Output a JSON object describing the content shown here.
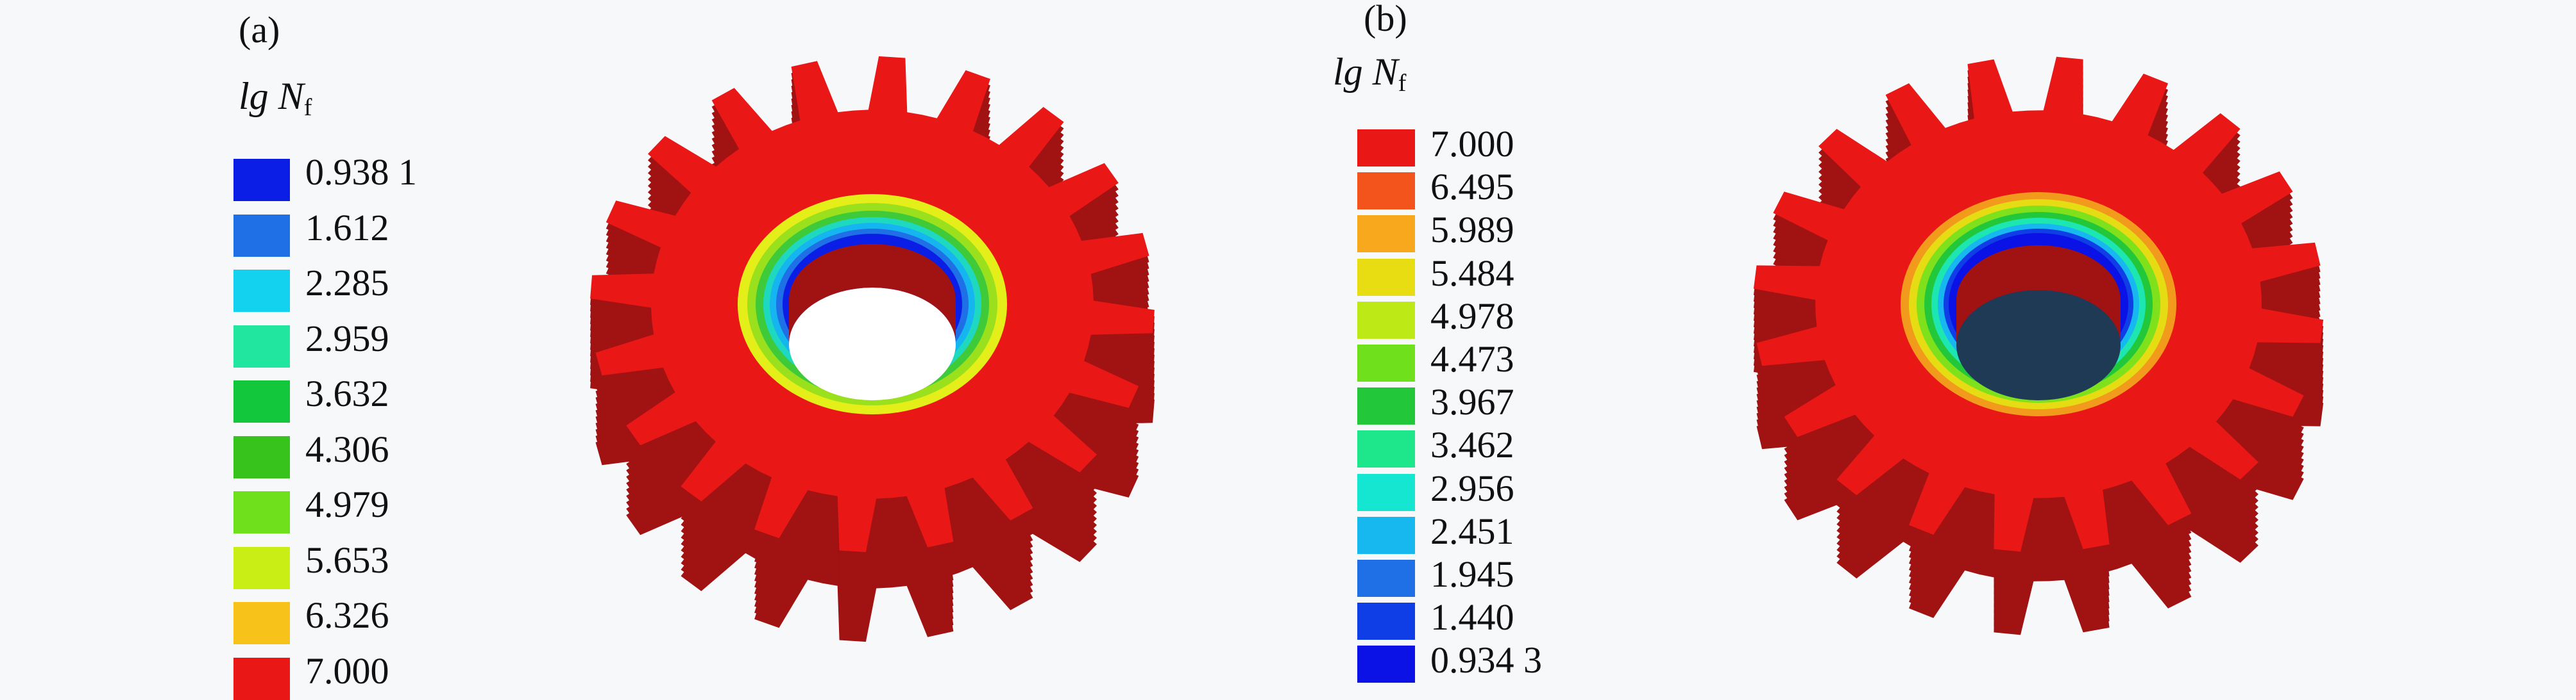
{
  "panel_a": {
    "label": "(a)",
    "legend_title": {
      "symbol": "lg N",
      "subscript": "f"
    },
    "legend": [
      {
        "value": "0.938 1",
        "color": "#0a1ee6"
      },
      {
        "value": "1.612",
        "color": "#1f6fe6"
      },
      {
        "value": "2.285",
        "color": "#12d2ef"
      },
      {
        "value": "2.959",
        "color": "#20e6a0"
      },
      {
        "value": "3.632",
        "color": "#12c73c"
      },
      {
        "value": "4.306",
        "color": "#38c21c"
      },
      {
        "value": "4.979",
        "color": "#6fe01c"
      },
      {
        "value": "5.653",
        "color": "#c8ee16"
      },
      {
        "value": "6.326",
        "color": "#f7c21a"
      },
      {
        "value": "7.000",
        "color": "#ea1717"
      }
    ]
  },
  "panel_b": {
    "label": "(b)",
    "legend_title": {
      "symbol": "lg N",
      "subscript": "f"
    },
    "legend": [
      {
        "value": "7.000",
        "color": "#ea1717"
      },
      {
        "value": "6.495",
        "color": "#f2541c"
      },
      {
        "value": "5.989",
        "color": "#f7a81c"
      },
      {
        "value": "5.484",
        "color": "#e8dc12"
      },
      {
        "value": "4.978",
        "color": "#bdea16"
      },
      {
        "value": "4.473",
        "color": "#6fe01c"
      },
      {
        "value": "3.967",
        "color": "#22c73a"
      },
      {
        "value": "3.462",
        "color": "#1ee68a"
      },
      {
        "value": "2.956",
        "color": "#14e6d2"
      },
      {
        "value": "2.451",
        "color": "#16b8ef"
      },
      {
        "value": "1.945",
        "color": "#1f6fe6"
      },
      {
        "value": "1.440",
        "color": "#0f3ee6"
      },
      {
        "value": "0.934 3",
        "color": "#0a12e6"
      }
    ]
  },
  "colors": {
    "gear_face": "#ea1717",
    "gear_side": "#a11212",
    "bore_a": "#ffffff",
    "bore_b": "#1f3a55"
  }
}
